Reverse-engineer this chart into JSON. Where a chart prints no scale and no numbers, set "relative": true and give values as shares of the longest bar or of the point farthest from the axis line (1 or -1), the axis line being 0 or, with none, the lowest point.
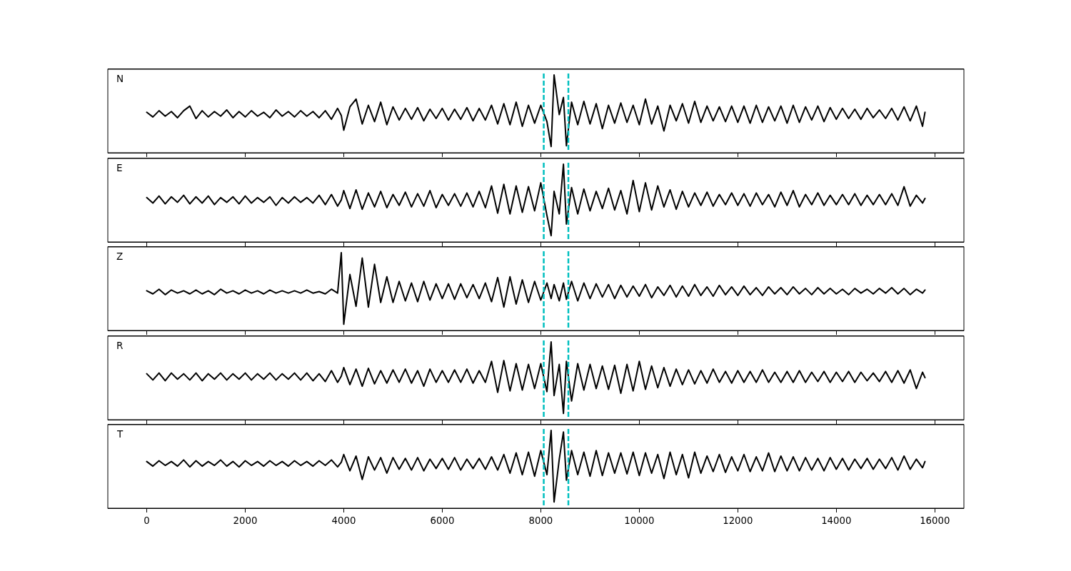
{
  "chart_data": [
    {
      "type": "line",
      "title": "N",
      "relative": true,
      "xlim": [
        -790,
        16590
      ],
      "xticks": [
        0,
        2000,
        4000,
        6000,
        8000,
        10000,
        12000,
        14000,
        16000
      ],
      "tick_labels": false,
      "x": [
        0,
        125,
        250,
        375,
        500,
        625,
        750,
        875,
        1000,
        1125,
        1250,
        1375,
        1500,
        1625,
        1750,
        1875,
        2000,
        2125,
        2250,
        2375,
        2500,
        2625,
        2750,
        2875,
        3000,
        3125,
        3250,
        3375,
        3500,
        3625,
        3750,
        3875,
        3950,
        4000,
        4125,
        4250,
        4375,
        4500,
        4625,
        4750,
        4875,
        5000,
        5125,
        5250,
        5375,
        5500,
        5625,
        5750,
        5875,
        6000,
        6125,
        6250,
        6375,
        6500,
        6625,
        6750,
        6875,
        7000,
        7125,
        7250,
        7375,
        7500,
        7625,
        7750,
        7875,
        8000,
        8125,
        8210,
        8270,
        8375,
        8460,
        8520,
        8625,
        8750,
        8875,
        9000,
        9125,
        9250,
        9375,
        9500,
        9625,
        9750,
        9875,
        10000,
        10125,
        10250,
        10375,
        10500,
        10625,
        10750,
        10875,
        11000,
        11125,
        11250,
        11375,
        11500,
        11625,
        11750,
        11875,
        12000,
        12125,
        12250,
        12375,
        12500,
        12625,
        12750,
        12875,
        13000,
        13125,
        13250,
        13375,
        13500,
        13625,
        13750,
        13875,
        14000,
        14125,
        14250,
        14375,
        14500,
        14625,
        14750,
        14875,
        15000,
        15125,
        15250,
        15375,
        15500,
        15625,
        15750,
        15800
      ],
      "series": [
        {
          "color": "#000000",
          "values": [
            0.52,
            0.46,
            0.54,
            0.47,
            0.53,
            0.45,
            0.54,
            0.6,
            0.44,
            0.54,
            0.46,
            0.53,
            0.47,
            0.55,
            0.45,
            0.53,
            0.46,
            0.54,
            0.47,
            0.52,
            0.45,
            0.55,
            0.47,
            0.53,
            0.46,
            0.54,
            0.47,
            0.53,
            0.45,
            0.54,
            0.43,
            0.57,
            0.48,
            0.29,
            0.59,
            0.69,
            0.37,
            0.61,
            0.4,
            0.65,
            0.36,
            0.59,
            0.42,
            0.57,
            0.43,
            0.58,
            0.41,
            0.56,
            0.44,
            0.57,
            0.42,
            0.56,
            0.43,
            0.58,
            0.41,
            0.57,
            0.42,
            0.61,
            0.37,
            0.63,
            0.36,
            0.65,
            0.34,
            0.61,
            0.38,
            0.61,
            0.4,
            0.08,
            1.0,
            0.49,
            0.71,
            0.09,
            0.65,
            0.36,
            0.66,
            0.37,
            0.63,
            0.31,
            0.61,
            0.38,
            0.64,
            0.39,
            0.61,
            0.36,
            0.69,
            0.37,
            0.6,
            0.28,
            0.61,
            0.41,
            0.63,
            0.38,
            0.66,
            0.39,
            0.6,
            0.41,
            0.59,
            0.4,
            0.6,
            0.39,
            0.6,
            0.38,
            0.61,
            0.39,
            0.59,
            0.41,
            0.6,
            0.38,
            0.61,
            0.39,
            0.59,
            0.42,
            0.6,
            0.4,
            0.58,
            0.43,
            0.57,
            0.44,
            0.56,
            0.43,
            0.57,
            0.45,
            0.55,
            0.44,
            0.57,
            0.42,
            0.59,
            0.41,
            0.6,
            0.34,
            0.52
          ]
        }
      ],
      "ref_lines": [
        {
          "axis": "x",
          "value": 8060,
          "color": "#00bfbf",
          "line_style": "dashed"
        },
        {
          "axis": "x",
          "value": 8560,
          "color": "#00bfbf",
          "line_style": "dashed"
        }
      ]
    },
    {
      "type": "line",
      "title": "E",
      "relative": true,
      "xlim": [
        -790,
        16590
      ],
      "xticks": [
        0,
        2000,
        4000,
        6000,
        8000,
        10000,
        12000,
        14000,
        16000
      ],
      "tick_labels": false,
      "x": [
        0,
        125,
        250,
        375,
        500,
        625,
        750,
        875,
        1000,
        1125,
        1250,
        1375,
        1500,
        1625,
        1750,
        1875,
        2000,
        2125,
        2250,
        2375,
        2500,
        2625,
        2750,
        2875,
        3000,
        3125,
        3250,
        3375,
        3500,
        3625,
        3750,
        3875,
        3950,
        4000,
        4125,
        4250,
        4375,
        4500,
        4625,
        4750,
        4875,
        5000,
        5125,
        5250,
        5375,
        5500,
        5625,
        5750,
        5875,
        6000,
        6125,
        6250,
        6375,
        6500,
        6625,
        6750,
        6875,
        7000,
        7125,
        7250,
        7375,
        7500,
        7625,
        7750,
        7875,
        8000,
        8125,
        8210,
        8270,
        8375,
        8460,
        8520,
        8625,
        8750,
        8875,
        9000,
        9125,
        9250,
        9375,
        9500,
        9625,
        9750,
        9875,
        10000,
        10125,
        10250,
        10375,
        10500,
        10625,
        10750,
        10875,
        11000,
        11125,
        11250,
        11375,
        11500,
        11625,
        11750,
        11875,
        12000,
        12125,
        12250,
        12375,
        12500,
        12625,
        12750,
        12875,
        13000,
        13125,
        13250,
        13375,
        13500,
        13625,
        13750,
        13875,
        14000,
        14125,
        14250,
        14375,
        14500,
        14625,
        14750,
        14875,
        15000,
        15125,
        15250,
        15375,
        15500,
        15625,
        15750,
        15800
      ],
      "series": [
        {
          "color": "#000000",
          "values": [
            0.57,
            0.5,
            0.59,
            0.49,
            0.58,
            0.51,
            0.6,
            0.49,
            0.58,
            0.5,
            0.59,
            0.48,
            0.57,
            0.51,
            0.58,
            0.49,
            0.59,
            0.5,
            0.57,
            0.51,
            0.58,
            0.47,
            0.57,
            0.5,
            0.58,
            0.51,
            0.57,
            0.5,
            0.6,
            0.48,
            0.61,
            0.46,
            0.54,
            0.66,
            0.43,
            0.67,
            0.42,
            0.63,
            0.45,
            0.65,
            0.44,
            0.61,
            0.47,
            0.64,
            0.45,
            0.62,
            0.46,
            0.66,
            0.44,
            0.61,
            0.47,
            0.62,
            0.46,
            0.63,
            0.45,
            0.65,
            0.44,
            0.72,
            0.37,
            0.74,
            0.36,
            0.72,
            0.38,
            0.71,
            0.4,
            0.76,
            0.34,
            0.08,
            0.65,
            0.36,
            1.0,
            0.23,
            0.7,
            0.36,
            0.68,
            0.4,
            0.65,
            0.43,
            0.69,
            0.41,
            0.66,
            0.36,
            0.79,
            0.39,
            0.76,
            0.41,
            0.72,
            0.45,
            0.67,
            0.42,
            0.65,
            0.45,
            0.63,
            0.47,
            0.64,
            0.46,
            0.61,
            0.48,
            0.63,
            0.47,
            0.62,
            0.46,
            0.63,
            0.48,
            0.61,
            0.45,
            0.64,
            0.47,
            0.66,
            0.45,
            0.61,
            0.48,
            0.63,
            0.47,
            0.6,
            0.48,
            0.61,
            0.48,
            0.62,
            0.47,
            0.6,
            0.48,
            0.61,
            0.48,
            0.62,
            0.47,
            0.71,
            0.46,
            0.6,
            0.5,
            0.56
          ]
        }
      ],
      "ref_lines": [
        {
          "axis": "x",
          "value": 8060,
          "color": "#00bfbf",
          "line_style": "dashed"
        },
        {
          "axis": "x",
          "value": 8560,
          "color": "#00bfbf",
          "line_style": "dashed"
        }
      ]
    },
    {
      "type": "line",
      "title": "Z",
      "relative": true,
      "xlim": [
        -790,
        16590
      ],
      "xticks": [
        0,
        2000,
        4000,
        6000,
        8000,
        10000,
        12000,
        14000,
        16000
      ],
      "tick_labels": false,
      "x": [
        0,
        125,
        250,
        375,
        500,
        625,
        750,
        875,
        1000,
        1125,
        1250,
        1375,
        1500,
        1625,
        1750,
        1875,
        2000,
        2125,
        2250,
        2375,
        2500,
        2625,
        2750,
        2875,
        3000,
        3125,
        3250,
        3375,
        3500,
        3625,
        3750,
        3875,
        3950,
        4000,
        4125,
        4250,
        4375,
        4500,
        4625,
        4750,
        4875,
        5000,
        5125,
        5250,
        5375,
        5500,
        5625,
        5750,
        5875,
        6000,
        6125,
        6250,
        6375,
        6500,
        6625,
        6750,
        6875,
        7000,
        7125,
        7250,
        7375,
        7500,
        7625,
        7750,
        7875,
        8000,
        8125,
        8210,
        8270,
        8375,
        8460,
        8520,
        8625,
        8750,
        8875,
        9000,
        9125,
        9250,
        9375,
        9500,
        9625,
        9750,
        9875,
        10000,
        10125,
        10250,
        10375,
        10500,
        10625,
        10750,
        10875,
        11000,
        11125,
        11250,
        11375,
        11500,
        11625,
        11750,
        11875,
        12000,
        12125,
        12250,
        12375,
        12500,
        12625,
        12750,
        12875,
        13000,
        13125,
        13250,
        13375,
        13500,
        13625,
        13750,
        13875,
        14000,
        14125,
        14250,
        14375,
        14500,
        14625,
        14750,
        14875,
        15000,
        15125,
        15250,
        15375,
        15500,
        15625,
        15750,
        15800
      ],
      "series": [
        {
          "color": "#000000",
          "values": [
            0.51,
            0.47,
            0.53,
            0.46,
            0.52,
            0.48,
            0.51,
            0.47,
            0.52,
            0.47,
            0.51,
            0.46,
            0.53,
            0.48,
            0.51,
            0.47,
            0.52,
            0.48,
            0.51,
            0.47,
            0.52,
            0.48,
            0.51,
            0.48,
            0.51,
            0.48,
            0.52,
            0.48,
            0.5,
            0.47,
            0.53,
            0.48,
            1.0,
            0.08,
            0.72,
            0.31,
            0.93,
            0.3,
            0.85,
            0.36,
            0.69,
            0.36,
            0.63,
            0.38,
            0.61,
            0.37,
            0.63,
            0.39,
            0.6,
            0.41,
            0.6,
            0.4,
            0.6,
            0.42,
            0.59,
            0.41,
            0.61,
            0.37,
            0.68,
            0.3,
            0.69,
            0.34,
            0.65,
            0.36,
            0.63,
            0.39,
            0.61,
            0.41,
            0.59,
            0.38,
            0.61,
            0.4,
            0.63,
            0.38,
            0.61,
            0.41,
            0.6,
            0.43,
            0.59,
            0.41,
            0.58,
            0.43,
            0.57,
            0.44,
            0.59,
            0.42,
            0.56,
            0.45,
            0.58,
            0.43,
            0.57,
            0.44,
            0.59,
            0.45,
            0.56,
            0.44,
            0.58,
            0.46,
            0.56,
            0.45,
            0.57,
            0.46,
            0.55,
            0.45,
            0.56,
            0.47,
            0.55,
            0.46,
            0.56,
            0.47,
            0.54,
            0.46,
            0.55,
            0.47,
            0.54,
            0.47,
            0.53,
            0.46,
            0.54,
            0.48,
            0.53,
            0.47,
            0.54,
            0.48,
            0.55,
            0.47,
            0.54,
            0.46,
            0.53,
            0.48,
            0.52
          ]
        }
      ],
      "ref_lines": [
        {
          "axis": "x",
          "value": 8060,
          "color": "#00bfbf",
          "line_style": "dashed"
        },
        {
          "axis": "x",
          "value": 8560,
          "color": "#00bfbf",
          "line_style": "dashed"
        }
      ]
    },
    {
      "type": "line",
      "title": "R",
      "relative": true,
      "xlim": [
        -790,
        16590
      ],
      "xticks": [
        0,
        2000,
        4000,
        6000,
        8000,
        10000,
        12000,
        14000,
        16000
      ],
      "tick_labels": false,
      "x": [
        0,
        125,
        250,
        375,
        500,
        625,
        750,
        875,
        1000,
        1125,
        1250,
        1375,
        1500,
        1625,
        1750,
        1875,
        2000,
        2125,
        2250,
        2375,
        2500,
        2625,
        2750,
        2875,
        3000,
        3125,
        3250,
        3375,
        3500,
        3625,
        3750,
        3875,
        3950,
        4000,
        4125,
        4250,
        4375,
        4500,
        4625,
        4750,
        4875,
        5000,
        5125,
        5250,
        5375,
        5500,
        5625,
        5750,
        5875,
        6000,
        6125,
        6250,
        6375,
        6500,
        6625,
        6750,
        6875,
        7000,
        7125,
        7250,
        7375,
        7500,
        7625,
        7750,
        7875,
        8000,
        8125,
        8210,
        8270,
        8375,
        8460,
        8520,
        8625,
        8750,
        8875,
        9000,
        9125,
        9250,
        9375,
        9500,
        9625,
        9750,
        9875,
        10000,
        10125,
        10250,
        10375,
        10500,
        10625,
        10750,
        10875,
        11000,
        11125,
        11250,
        11375,
        11500,
        11625,
        11750,
        11875,
        12000,
        12125,
        12250,
        12375,
        12500,
        12625,
        12750,
        12875,
        13000,
        13125,
        13250,
        13375,
        13500,
        13625,
        13750,
        13875,
        14000,
        14125,
        14250,
        14375,
        14500,
        14625,
        14750,
        14875,
        15000,
        15125,
        15250,
        15375,
        15500,
        15625,
        15750,
        15800
      ],
      "series": [
        {
          "color": "#000000",
          "values": [
            0.59,
            0.51,
            0.6,
            0.5,
            0.6,
            0.52,
            0.59,
            0.51,
            0.6,
            0.5,
            0.59,
            0.52,
            0.6,
            0.51,
            0.59,
            0.52,
            0.6,
            0.51,
            0.59,
            0.52,
            0.6,
            0.51,
            0.59,
            0.52,
            0.6,
            0.51,
            0.6,
            0.5,
            0.59,
            0.49,
            0.63,
            0.48,
            0.56,
            0.67,
            0.45,
            0.65,
            0.43,
            0.66,
            0.46,
            0.63,
            0.47,
            0.64,
            0.48,
            0.65,
            0.47,
            0.63,
            0.43,
            0.65,
            0.48,
            0.63,
            0.48,
            0.64,
            0.48,
            0.65,
            0.47,
            0.63,
            0.48,
            0.75,
            0.35,
            0.76,
            0.37,
            0.72,
            0.38,
            0.71,
            0.4,
            0.72,
            0.36,
            1.0,
            0.31,
            0.71,
            0.08,
            0.75,
            0.24,
            0.72,
            0.38,
            0.71,
            0.4,
            0.69,
            0.39,
            0.7,
            0.34,
            0.71,
            0.37,
            0.75,
            0.39,
            0.69,
            0.41,
            0.67,
            0.43,
            0.65,
            0.45,
            0.64,
            0.46,
            0.63,
            0.47,
            0.65,
            0.48,
            0.62,
            0.47,
            0.63,
            0.48,
            0.62,
            0.48,
            0.64,
            0.48,
            0.61,
            0.48,
            0.62,
            0.48,
            0.63,
            0.48,
            0.61,
            0.49,
            0.62,
            0.48,
            0.61,
            0.49,
            0.62,
            0.48,
            0.61,
            0.5,
            0.6,
            0.49,
            0.62,
            0.48,
            0.63,
            0.47,
            0.64,
            0.4,
            0.61,
            0.54
          ]
        }
      ],
      "ref_lines": [
        {
          "axis": "x",
          "value": 8060,
          "color": "#00bfbf",
          "line_style": "dashed"
        },
        {
          "axis": "x",
          "value": 8560,
          "color": "#00bfbf",
          "line_style": "dashed"
        }
      ]
    },
    {
      "type": "line",
      "title": "T",
      "relative": true,
      "xlim": [
        -790,
        16590
      ],
      "xticks": [
        0,
        2000,
        4000,
        6000,
        8000,
        10000,
        12000,
        14000,
        16000
      ],
      "tick_labels": "x",
      "x": [
        0,
        125,
        250,
        375,
        500,
        625,
        750,
        875,
        1000,
        1125,
        1250,
        1375,
        1500,
        1625,
        1750,
        1875,
        2000,
        2125,
        2250,
        2375,
        2500,
        2625,
        2750,
        2875,
        3000,
        3125,
        3250,
        3375,
        3500,
        3625,
        3750,
        3875,
        3950,
        4000,
        4125,
        4250,
        4375,
        4500,
        4625,
        4750,
        4875,
        5000,
        5125,
        5250,
        5375,
        5500,
        5625,
        5750,
        5875,
        6000,
        6125,
        6250,
        6375,
        6500,
        6625,
        6750,
        6875,
        7000,
        7125,
        7250,
        7375,
        7500,
        7625,
        7750,
        7875,
        8000,
        8125,
        8210,
        8270,
        8375,
        8460,
        8520,
        8625,
        8750,
        8875,
        9000,
        9125,
        9250,
        9375,
        9500,
        9625,
        9750,
        9875,
        10000,
        10125,
        10250,
        10375,
        10500,
        10625,
        10750,
        10875,
        11000,
        11125,
        11250,
        11375,
        11500,
        11625,
        11750,
        11875,
        12000,
        12125,
        12250,
        12375,
        12500,
        12625,
        12750,
        12875,
        13000,
        13125,
        13250,
        13375,
        13500,
        13625,
        13750,
        13875,
        14000,
        14125,
        14250,
        14375,
        14500,
        14625,
        14750,
        14875,
        15000,
        15125,
        15250,
        15375,
        15500,
        15625,
        15750,
        15800
      ],
      "series": [
        {
          "color": "#000000",
          "values": [
            0.6,
            0.54,
            0.61,
            0.55,
            0.6,
            0.54,
            0.62,
            0.53,
            0.61,
            0.54,
            0.6,
            0.55,
            0.62,
            0.54,
            0.6,
            0.53,
            0.61,
            0.55,
            0.6,
            0.54,
            0.61,
            0.55,
            0.6,
            0.54,
            0.61,
            0.55,
            0.6,
            0.54,
            0.61,
            0.55,
            0.62,
            0.53,
            0.59,
            0.69,
            0.48,
            0.67,
            0.37,
            0.66,
            0.49,
            0.65,
            0.45,
            0.65,
            0.5,
            0.64,
            0.49,
            0.65,
            0.48,
            0.63,
            0.51,
            0.64,
            0.5,
            0.65,
            0.49,
            0.63,
            0.51,
            0.64,
            0.5,
            0.66,
            0.49,
            0.69,
            0.45,
            0.71,
            0.43,
            0.72,
            0.41,
            0.74,
            0.43,
            1.0,
            0.08,
            0.63,
            0.98,
            0.36,
            0.74,
            0.43,
            0.72,
            0.41,
            0.74,
            0.42,
            0.71,
            0.45,
            0.71,
            0.44,
            0.72,
            0.42,
            0.71,
            0.45,
            0.69,
            0.38,
            0.72,
            0.43,
            0.69,
            0.39,
            0.72,
            0.45,
            0.67,
            0.47,
            0.69,
            0.46,
            0.66,
            0.48,
            0.69,
            0.47,
            0.66,
            0.48,
            0.71,
            0.47,
            0.67,
            0.48,
            0.66,
            0.48,
            0.65,
            0.49,
            0.64,
            0.48,
            0.65,
            0.5,
            0.64,
            0.49,
            0.63,
            0.51,
            0.64,
            0.5,
            0.63,
            0.51,
            0.65,
            0.49,
            0.67,
            0.5,
            0.63,
            0.52,
            0.6
          ]
        }
      ],
      "ref_lines": [
        {
          "axis": "x",
          "value": 8060,
          "color": "#00bfbf",
          "line_style": "dashed"
        },
        {
          "axis": "x",
          "value": 8560,
          "color": "#00bfbf",
          "line_style": "dashed"
        }
      ]
    }
  ]
}
